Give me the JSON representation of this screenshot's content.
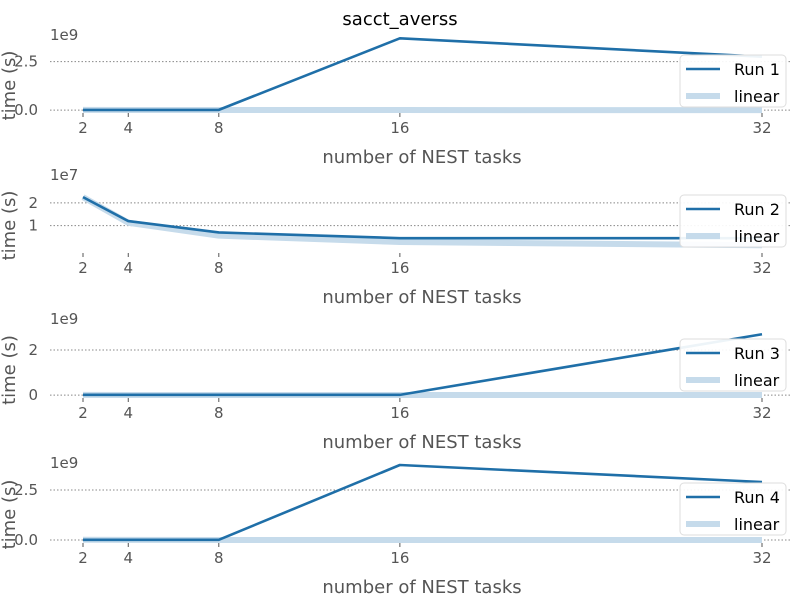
{
  "chart_data": {
    "title": "sacct_averss",
    "panels": [
      {
        "type": "line",
        "x": [
          2,
          4,
          8,
          16,
          32
        ],
        "x_tick_labels": [
          "2",
          "4",
          "8",
          "16",
          "32"
        ],
        "xlabel": "number of NEST tasks",
        "ylabel": "time (s)",
        "y_offset_label": "1e9",
        "y_ticks": [
          0,
          2.5
        ],
        "y_tick_labels": [
          "0.0",
          "2.5"
        ],
        "ylim": [
          -0.15,
          3.2
        ],
        "grid": "horizontal-dotted",
        "legend_position": "right",
        "series": [
          {
            "name": "Run 1",
            "style": "line",
            "values": [
              0.01,
              0.01,
              0.01,
              3.7,
              2.75
            ]
          },
          {
            "name": "linear",
            "style": "band",
            "values": [
              0.01,
              0.005,
              0.003,
              0.0015,
              0.0008
            ]
          }
        ]
      },
      {
        "type": "line",
        "x": [
          2,
          4,
          8,
          16,
          32
        ],
        "x_tick_labels": [
          "2",
          "4",
          "8",
          "16",
          "32"
        ],
        "xlabel": "number of NEST tasks",
        "ylabel": "time (s)",
        "y_offset_label": "1e7",
        "y_ticks": [
          1,
          2
        ],
        "y_tick_labels": [
          "1",
          "2"
        ],
        "ylim": [
          -0.2,
          2.65
        ],
        "grid": "horizontal-dotted",
        "legend_position": "right",
        "series": [
          {
            "name": "Run 2",
            "style": "line",
            "values": [
              2.25,
              1.2,
              0.7,
              0.45,
              0.45
            ]
          },
          {
            "name": "linear",
            "style": "band",
            "values": [
              2.25,
              1.125,
              0.56,
              0.28,
              0.14
            ]
          }
        ]
      },
      {
        "type": "line",
        "x": [
          2,
          4,
          8,
          16,
          32
        ],
        "x_tick_labels": [
          "2",
          "4",
          "8",
          "16",
          "32"
        ],
        "xlabel": "number of NEST tasks",
        "ylabel": "time (s)",
        "y_offset_label": "1e9",
        "y_ticks": [
          0,
          2
        ],
        "y_tick_labels": [
          "0",
          "2"
        ],
        "ylim": [
          -0.13,
          2.8
        ],
        "grid": "horizontal-dotted",
        "legend_position": "right",
        "series": [
          {
            "name": "Run 3",
            "style": "line",
            "values": [
              0.01,
              0.01,
              0.01,
              0.01,
              2.7
            ]
          },
          {
            "name": "linear",
            "style": "band",
            "values": [
              0.01,
              0.005,
              0.003,
              0.0015,
              0.0008
            ]
          }
        ]
      },
      {
        "type": "line",
        "x": [
          2,
          4,
          8,
          16,
          32
        ],
        "x_tick_labels": [
          "2",
          "4",
          "8",
          "16",
          "32"
        ],
        "xlabel": "number of NEST tasks",
        "ylabel": "time (s)",
        "y_offset_label": "1e9",
        "y_ticks": [
          0,
          2.5
        ],
        "y_tick_labels": [
          "0.0",
          "2.5"
        ],
        "ylim": [
          -0.15,
          3.2
        ],
        "grid": "horizontal-dotted",
        "legend_position": "right",
        "series": [
          {
            "name": "Run 4",
            "style": "line",
            "values": [
              0.01,
              0.01,
              0.01,
              3.75,
              2.9
            ]
          },
          {
            "name": "linear",
            "style": "band",
            "values": [
              0.01,
              0.005,
              0.003,
              0.0015,
              0.0008
            ]
          }
        ]
      }
    ]
  },
  "colors": {
    "series_line": "#1f6fa8",
    "linear_band": "#c6dbeb",
    "grid": "#888888",
    "text": "#555555"
  }
}
